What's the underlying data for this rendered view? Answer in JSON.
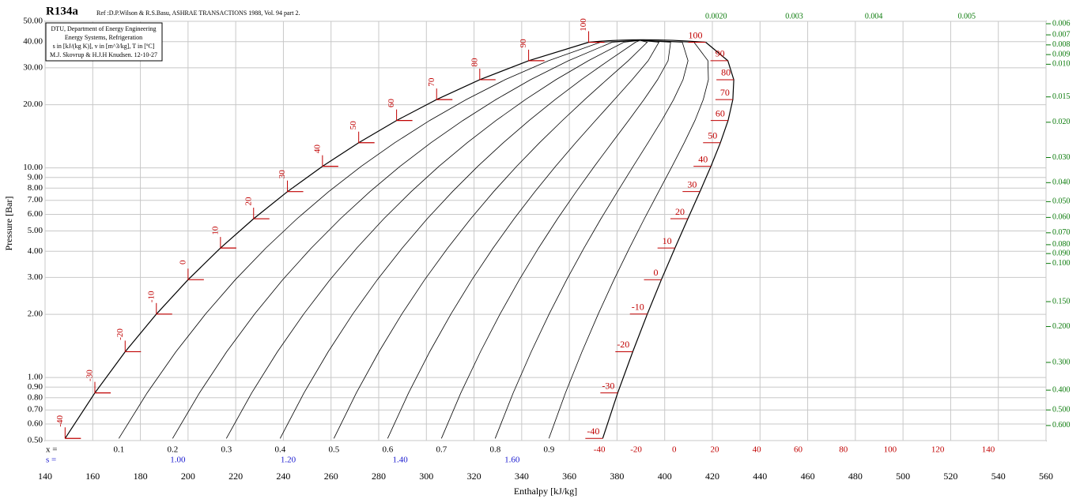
{
  "chart_data": {
    "type": "ph-diagram",
    "title": "R134a",
    "reference": "Ref :D.P.Wilson & R.S.Basu, ASHRAE TRANSACTIONS 1988, Vol. 94 part 2.",
    "info_lines": [
      "DTU, Department of Energy Engineering",
      "Energy Systems, Refrigeration",
      "s in [kJ/(kg K)], v in [m^3/kg], T in [ºC]",
      "M.J. Skovrup & H.J.H Knudsen. 12-10-27"
    ],
    "xlabel": "Enthalpy [kJ/kg]",
    "ylabel": "Pressure [Bar]",
    "log_y": true,
    "grid": true,
    "xlim": [
      140,
      560
    ],
    "ylim": [
      0.5,
      50
    ],
    "xticks": [
      140,
      160,
      180,
      200,
      220,
      240,
      260,
      280,
      300,
      320,
      340,
      360,
      380,
      400,
      420,
      440,
      460,
      480,
      500,
      520,
      540,
      560
    ],
    "yticks": [
      {
        "value": 50,
        "label": "50.00"
      },
      {
        "value": 40,
        "label": "40.00"
      },
      {
        "value": 30,
        "label": "30.00"
      },
      {
        "value": 20,
        "label": "20.00"
      },
      {
        "value": 10,
        "label": "10.00"
      },
      {
        "value": 9,
        "label": "9.00"
      },
      {
        "value": 8,
        "label": "8.00"
      },
      {
        "value": 7,
        "label": "7.00"
      },
      {
        "value": 6,
        "label": "6.00"
      },
      {
        "value": 5,
        "label": "5.00"
      },
      {
        "value": 4,
        "label": "4.00"
      },
      {
        "value": 3,
        "label": "3.00"
      },
      {
        "value": 2,
        "label": "2.00"
      },
      {
        "value": 1,
        "label": "1.00"
      },
      {
        "value": 0.9,
        "label": "0.90"
      },
      {
        "value": 0.8,
        "label": "0.80"
      },
      {
        "value": 0.7,
        "label": "0.70"
      },
      {
        "value": 0.6,
        "label": "0.60"
      },
      {
        "value": 0.5,
        "label": "0.50"
      }
    ],
    "saturation": {
      "temperatures": [
        -40,
        -30,
        -20,
        -10,
        0,
        10,
        20,
        30,
        40,
        50,
        60,
        70,
        80,
        90,
        100
      ],
      "pressures": [
        0.512,
        0.844,
        1.327,
        2.006,
        2.928,
        4.146,
        5.717,
        7.702,
        10.17,
        13.18,
        16.82,
        21.17,
        26.33,
        32.44,
        39.72
      ],
      "h_liquid": [
        148.4,
        160.9,
        173.6,
        186.7,
        200.0,
        213.6,
        227.5,
        241.7,
        256.4,
        271.6,
        287.5,
        304.3,
        322.4,
        342.9,
        368.1
      ],
      "h_vapor": [
        374.0,
        380.3,
        386.6,
        392.7,
        398.6,
        404.3,
        409.7,
        414.8,
        419.4,
        423.4,
        426.6,
        428.6,
        429.0,
        426.5,
        417.2
      ]
    },
    "critical_point": {
      "p": 40.59,
      "h": 389.6
    },
    "quality_label": "x =",
    "quality_lines": [
      0.1,
      0.2,
      0.3,
      0.4,
      0.5,
      0.6,
      0.7,
      0.8,
      0.9
    ],
    "entropy_label": "s =",
    "entropy_row": {
      "values": [
        1.0,
        1.2,
        1.4,
        1.6
      ],
      "value_labels": [
        "1.00",
        "1.20",
        "1.40",
        "1.60"
      ],
      "h": [
        195.7,
        242,
        289,
        336
      ]
    },
    "isotherm_bottom": {
      "temperatures": [
        -40,
        -20,
        0,
        20,
        40,
        60,
        80,
        100,
        120,
        140
      ],
      "h": [
        372.6,
        388,
        404,
        421,
        438.6,
        456,
        475,
        494.6,
        514.6,
        535.8
      ]
    },
    "isochore_right": {
      "values": [
        0.006,
        0.007,
        0.008,
        0.009,
        0.01,
        0.015,
        0.02,
        0.03,
        0.04,
        0.05,
        0.06,
        0.07,
        0.08,
        0.09,
        0.1,
        0.15,
        0.2,
        0.3,
        0.4,
        0.5,
        0.6
      ],
      "value_labels": [
        "0.006",
        "0.007",
        "0.008",
        "0.009",
        "0.010",
        "0.015",
        "0.020",
        "0.030",
        "0.040",
        "0.050",
        "0.060",
        "0.070",
        "0.080",
        "0.090",
        "0.100",
        "0.150",
        "0.200",
        "0.300",
        "0.400",
        "0.500",
        "0.600"
      ],
      "p": [
        48.7,
        43.1,
        38.6,
        34.7,
        31.2,
        21.8,
        16.5,
        11.2,
        8.5,
        6.9,
        5.8,
        4.9,
        4.3,
        3.9,
        3.5,
        2.3,
        1.75,
        1.18,
        0.87,
        0.7,
        0.59
      ]
    },
    "isochore_top": {
      "values": [
        0.002,
        0.003,
        0.004,
        0.005
      ],
      "value_labels": [
        "0.0020",
        "0.003",
        "0.004",
        "0.005"
      ],
      "h": [
        417,
        450.6,
        484,
        523
      ]
    }
  }
}
